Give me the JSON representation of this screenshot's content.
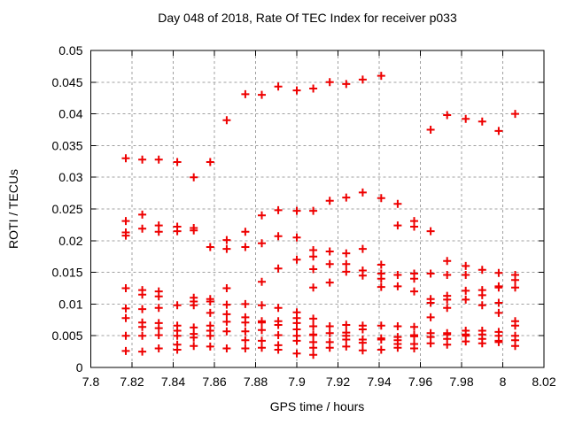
{
  "chart_data": {
    "type": "scatter",
    "title": "Day 048 of 2018, Rate Of TEC Index for receiver p033",
    "xlabel": "GPS time / hours",
    "ylabel": "ROTI / TECUs",
    "xlim": [
      7.8,
      8.02
    ],
    "ylim": [
      0,
      0.05
    ],
    "grid": true,
    "legend_position": "none",
    "background_color": "#ffffff",
    "axis_color": "#000000",
    "grid_color": "#a0a0a0",
    "marker": {
      "shape": "plus",
      "color": "#ee0000",
      "size": 9
    },
    "xticks": [
      {
        "value": 7.8,
        "label": "7.8"
      },
      {
        "value": 7.82,
        "label": "7.82"
      },
      {
        "value": 7.84,
        "label": "7.84"
      },
      {
        "value": 7.86,
        "label": "7.86"
      },
      {
        "value": 7.88,
        "label": "7.88"
      },
      {
        "value": 7.9,
        "label": "7.9"
      },
      {
        "value": 7.92,
        "label": "7.92"
      },
      {
        "value": 7.94,
        "label": "7.94"
      },
      {
        "value": 7.96,
        "label": "7.96"
      },
      {
        "value": 7.98,
        "label": "7.98"
      },
      {
        "value": 8.0,
        "label": "8"
      },
      {
        "value": 8.02,
        "label": "8.02"
      }
    ],
    "yticks": [
      {
        "value": 0,
        "label": "0"
      },
      {
        "value": 0.005,
        "label": "0.005"
      },
      {
        "value": 0.01,
        "label": "0.01"
      },
      {
        "value": 0.015,
        "label": "0.015"
      },
      {
        "value": 0.02,
        "label": "0.02"
      },
      {
        "value": 0.025,
        "label": "0.025"
      },
      {
        "value": 0.03,
        "label": "0.03"
      },
      {
        "value": 0.035,
        "label": "0.035"
      },
      {
        "value": 0.04,
        "label": "0.04"
      },
      {
        "value": 0.045,
        "label": "0.045"
      },
      {
        "value": 0.05,
        "label": "0.05"
      }
    ],
    "series": [
      {
        "name": "ROTI",
        "color": "#ee0000",
        "columns": [
          {
            "t": 7.817,
            "values": [
              0.033,
              0.0231,
              0.0213,
              0.0208,
              0.0125,
              0.0093,
              0.0078,
              0.005,
              0.0026
            ]
          },
          {
            "t": 7.825,
            "values": [
              0.0328,
              0.0241,
              0.0219,
              0.0122,
              0.0115,
              0.0092,
              0.0071,
              0.0064,
              0.005,
              0.0025
            ]
          },
          {
            "t": 7.833,
            "values": [
              0.0328,
              0.0224,
              0.0214,
              0.012,
              0.0112,
              0.0094,
              0.007,
              0.0062,
              0.0051,
              0.003
            ]
          },
          {
            "t": 7.842,
            "values": [
              0.0324,
              0.0222,
              0.0215,
              0.0098,
              0.0066,
              0.0058,
              0.005,
              0.0036,
              0.0028
            ]
          },
          {
            "t": 7.85,
            "values": [
              0.03,
              0.022,
              0.0216,
              0.011,
              0.0104,
              0.0098,
              0.0063,
              0.0053,
              0.0047,
              0.0034
            ]
          },
          {
            "t": 7.858,
            "values": [
              0.0324,
              0.019,
              0.0108,
              0.0104,
              0.0086,
              0.0066,
              0.0058,
              0.005,
              0.0033
            ]
          },
          {
            "t": 7.866,
            "values": [
              0.039,
              0.0201,
              0.0187,
              0.0125,
              0.0099,
              0.0084,
              0.0072,
              0.0057,
              0.003
            ]
          },
          {
            "t": 7.875,
            "values": [
              0.0431,
              0.0214,
              0.019,
              0.01,
              0.0079,
              0.0071,
              0.0057,
              0.0043,
              0.003
            ]
          },
          {
            "t": 7.883,
            "values": [
              0.043,
              0.024,
              0.0196,
              0.0135,
              0.0098,
              0.0073,
              0.0071,
              0.0059,
              0.0042,
              0.0031
            ]
          },
          {
            "t": 7.891,
            "values": [
              0.0443,
              0.0248,
              0.0207,
              0.0156,
              0.0094,
              0.0073,
              0.0067,
              0.0051,
              0.0035,
              0.0028
            ]
          },
          {
            "t": 7.9,
            "values": [
              0.0437,
              0.0247,
              0.0205,
              0.017,
              0.0087,
              0.0078,
              0.007,
              0.006,
              0.005,
              0.0042,
              0.0022
            ]
          },
          {
            "t": 7.908,
            "values": [
              0.044,
              0.0247,
              0.0185,
              0.0175,
              0.0155,
              0.0126,
              0.0077,
              0.0065,
              0.0052,
              0.0051,
              0.004,
              0.0031,
              0.002
            ]
          },
          {
            "t": 7.916,
            "values": [
              0.045,
              0.0263,
              0.0183,
              0.0163,
              0.0134,
              0.0065,
              0.0054,
              0.004,
              0.0031
            ]
          },
          {
            "t": 7.924,
            "values": [
              0.0447,
              0.0268,
              0.018,
              0.0163,
              0.0151,
              0.0067,
              0.0055,
              0.005,
              0.0044,
              0.0033
            ]
          },
          {
            "t": 7.932,
            "values": [
              0.0454,
              0.0276,
              0.0187,
              0.0153,
              0.0145,
              0.0066,
              0.006,
              0.0044,
              0.0039,
              0.0027
            ]
          },
          {
            "t": 7.941,
            "values": [
              0.046,
              0.0267,
              0.0162,
              0.0148,
              0.014,
              0.0127,
              0.0066,
              0.0046,
              0.0044,
              0.0028
            ]
          },
          {
            "t": 7.949,
            "values": [
              0.0258,
              0.0224,
              0.0146,
              0.0128,
              0.0065,
              0.0048,
              0.0043,
              0.0037,
              0.0031
            ]
          },
          {
            "t": 7.957,
            "values": [
              0.0231,
              0.0222,
              0.0148,
              0.014,
              0.012,
              0.0064,
              0.0051,
              0.0049,
              0.0037,
              0.003
            ]
          },
          {
            "t": 7.965,
            "values": [
              0.0375,
              0.0215,
              0.0148,
              0.0108,
              0.0102,
              0.0079,
              0.0054,
              0.0048,
              0.0038
            ]
          },
          {
            "t": 7.973,
            "values": [
              0.0398,
              0.0168,
              0.0146,
              0.0113,
              0.0107,
              0.0094,
              0.0054,
              0.0052,
              0.0045,
              0.0036
            ]
          },
          {
            "t": 7.982,
            "values": [
              0.0392,
              0.016,
              0.0146,
              0.0121,
              0.0107,
              0.0058,
              0.0052,
              0.005,
              0.0041
            ]
          },
          {
            "t": 7.99,
            "values": [
              0.0388,
              0.0154,
              0.0122,
              0.0114,
              0.0098,
              0.0058,
              0.0052,
              0.0045,
              0.0038
            ]
          },
          {
            "t": 7.998,
            "values": [
              0.0373,
              0.0149,
              0.0128,
              0.0126,
              0.0102,
              0.0086,
              0.0056,
              0.005,
              0.0042,
              0.004
            ]
          },
          {
            "t": 8.006,
            "values": [
              0.04,
              0.0146,
              0.0138,
              0.0126,
              0.0073,
              0.0066,
              0.005,
              0.0043,
              0.0034
            ]
          }
        ]
      }
    ]
  }
}
